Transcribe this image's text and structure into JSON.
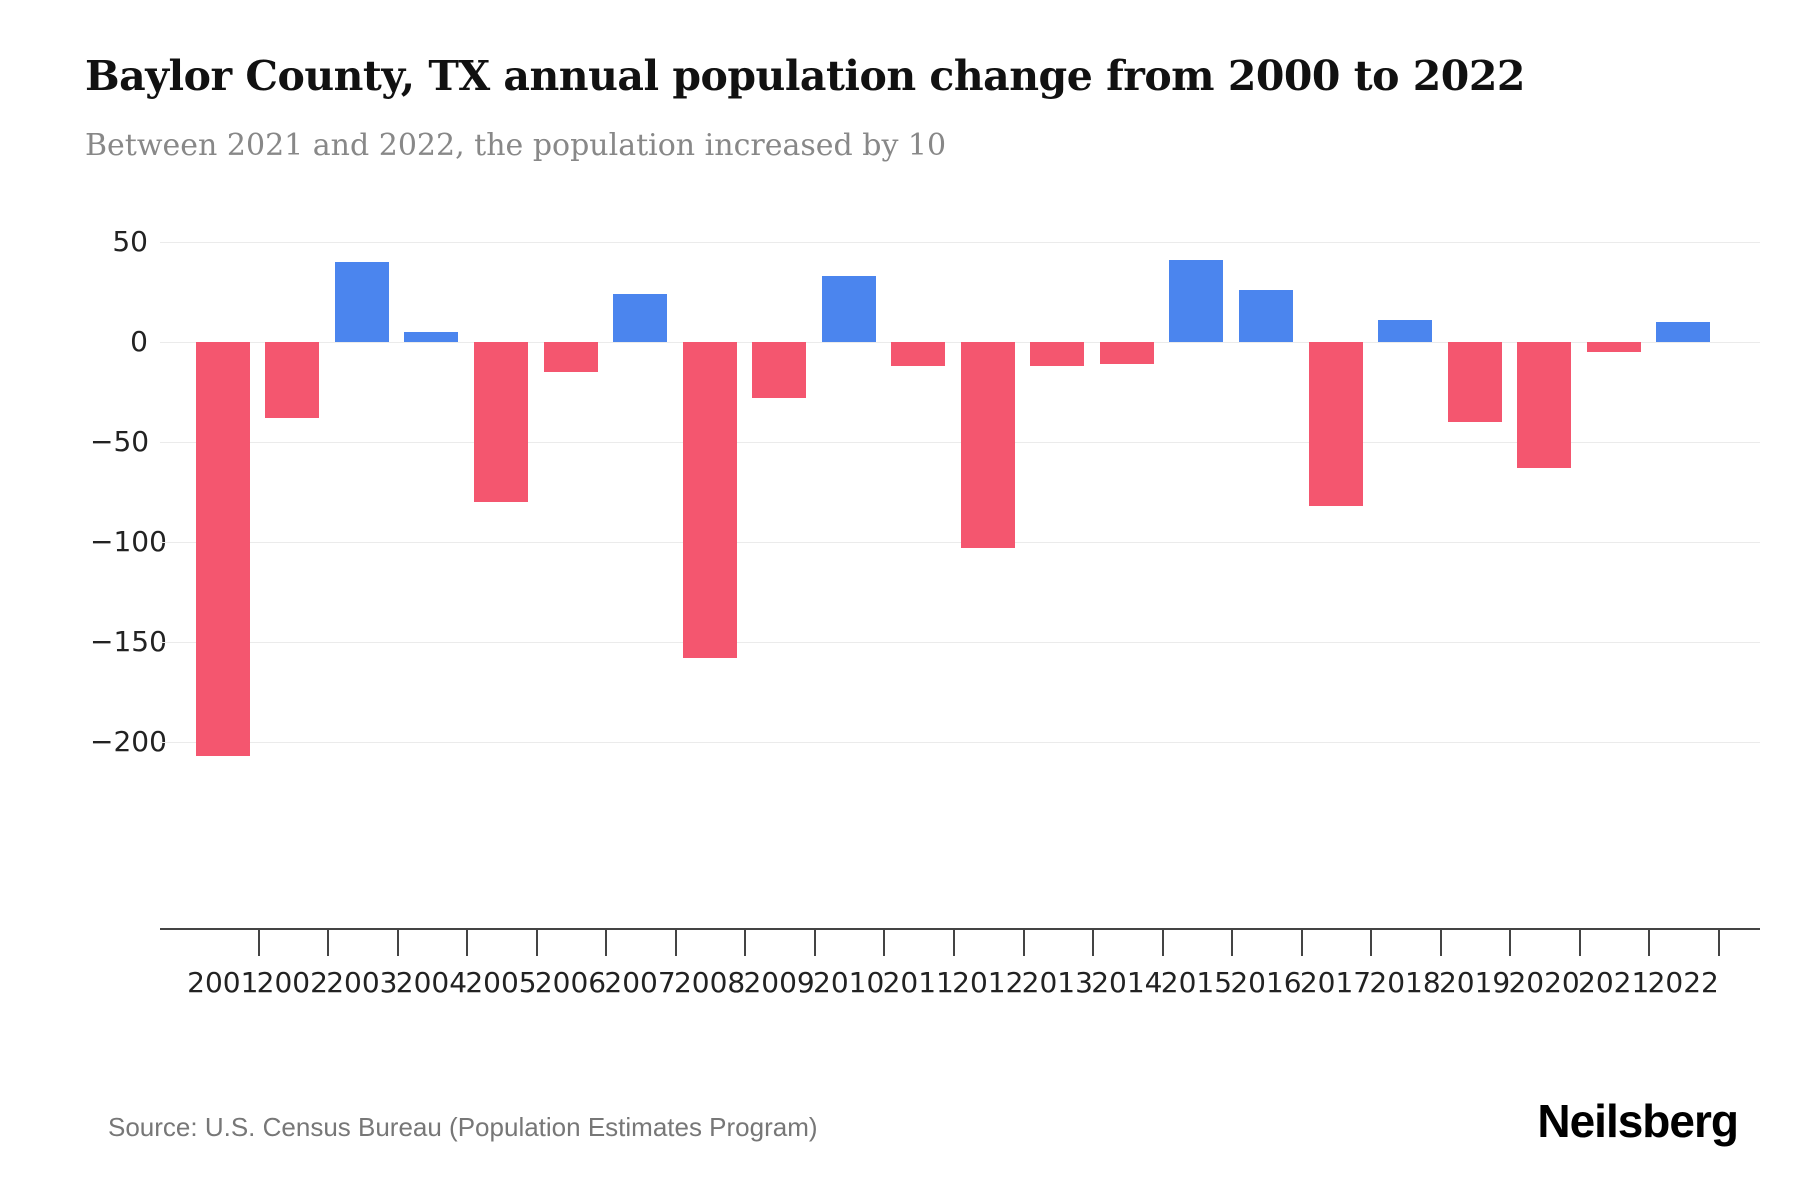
{
  "header": {
    "title": "Baylor County, TX annual population change from 2000 to 2022",
    "subtitle": "Between 2021 and 2022, the population increased by 10"
  },
  "footer": {
    "source": "Source: U.S. Census Bureau (Population Estimates Program)",
    "logo": "Neilsberg"
  },
  "chart_data": {
    "type": "bar",
    "title": "Baylor County, TX annual population change from 2000 to 2022",
    "subtitle": "Between 2021 and 2022, the population increased by 10",
    "xlabel": "",
    "ylabel": "",
    "categories": [
      "2001",
      "2002",
      "2003",
      "2004",
      "2005",
      "2006",
      "2007",
      "2008",
      "2009",
      "2010",
      "2011",
      "2012",
      "2013",
      "2014",
      "2015",
      "2016",
      "2017",
      "2018",
      "2019",
      "2020",
      "2021",
      "2022"
    ],
    "values": [
      -207,
      -38,
      40,
      5,
      -80,
      -15,
      24,
      -158,
      -28,
      33,
      -12,
      -103,
      -12,
      -11,
      41,
      26,
      -82,
      11,
      -40,
      -63,
      -5,
      10
    ],
    "ytick_values": [
      50,
      0,
      -50,
      -100,
      -150,
      -200
    ],
    "ytick_labels": [
      "50",
      "0",
      "−50",
      "−100",
      "−150",
      "−200"
    ],
    "ylim": [
      -230,
      57
    ],
    "grid": true,
    "legend": false,
    "colors": {
      "positive_bar": "#4b85ee",
      "negative_bar": "#f4566f",
      "gridline": "#ebebeb",
      "axis": "#444444"
    }
  }
}
